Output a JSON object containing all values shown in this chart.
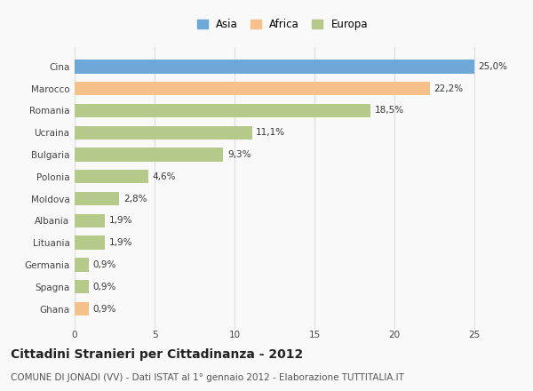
{
  "categories": [
    "Cina",
    "Marocco",
    "Romania",
    "Ucraina",
    "Bulgaria",
    "Polonia",
    "Moldova",
    "Albania",
    "Lituania",
    "Germania",
    "Spagna",
    "Ghana"
  ],
  "values": [
    25.0,
    22.2,
    18.5,
    11.1,
    9.3,
    4.6,
    2.8,
    1.9,
    1.9,
    0.9,
    0.9,
    0.9
  ],
  "labels": [
    "25,0%",
    "22,2%",
    "18,5%",
    "11,1%",
    "9,3%",
    "4,6%",
    "2,8%",
    "1,9%",
    "1,9%",
    "0,9%",
    "0,9%",
    "0,9%"
  ],
  "colors": [
    "#6ea8d8",
    "#f5c08a",
    "#b5c98a",
    "#b5c98a",
    "#b5c98a",
    "#b5c98a",
    "#b5c98a",
    "#b5c98a",
    "#b5c98a",
    "#b5c98a",
    "#b5c98a",
    "#f5c08a"
  ],
  "legend": [
    {
      "label": "Asia",
      "color": "#6ea8d8"
    },
    {
      "label": "Africa",
      "color": "#f5c08a"
    },
    {
      "label": "Europa",
      "color": "#b5c98a"
    }
  ],
  "xlim": [
    0,
    26
  ],
  "xticks": [
    0,
    5,
    10,
    15,
    20,
    25
  ],
  "title": "Cittadini Stranieri per Cittadinanza - 2012",
  "subtitle": "COMUNE DI JONADI (VV) - Dati ISTAT al 1° gennaio 2012 - Elaborazione TUTTITALIA.IT",
  "background_color": "#f9f9f9",
  "bar_height": 0.62,
  "grid_color": "#dddddd",
  "label_fontsize": 7.5,
  "tick_fontsize": 7.5,
  "title_fontsize": 10,
  "subtitle_fontsize": 7.5
}
